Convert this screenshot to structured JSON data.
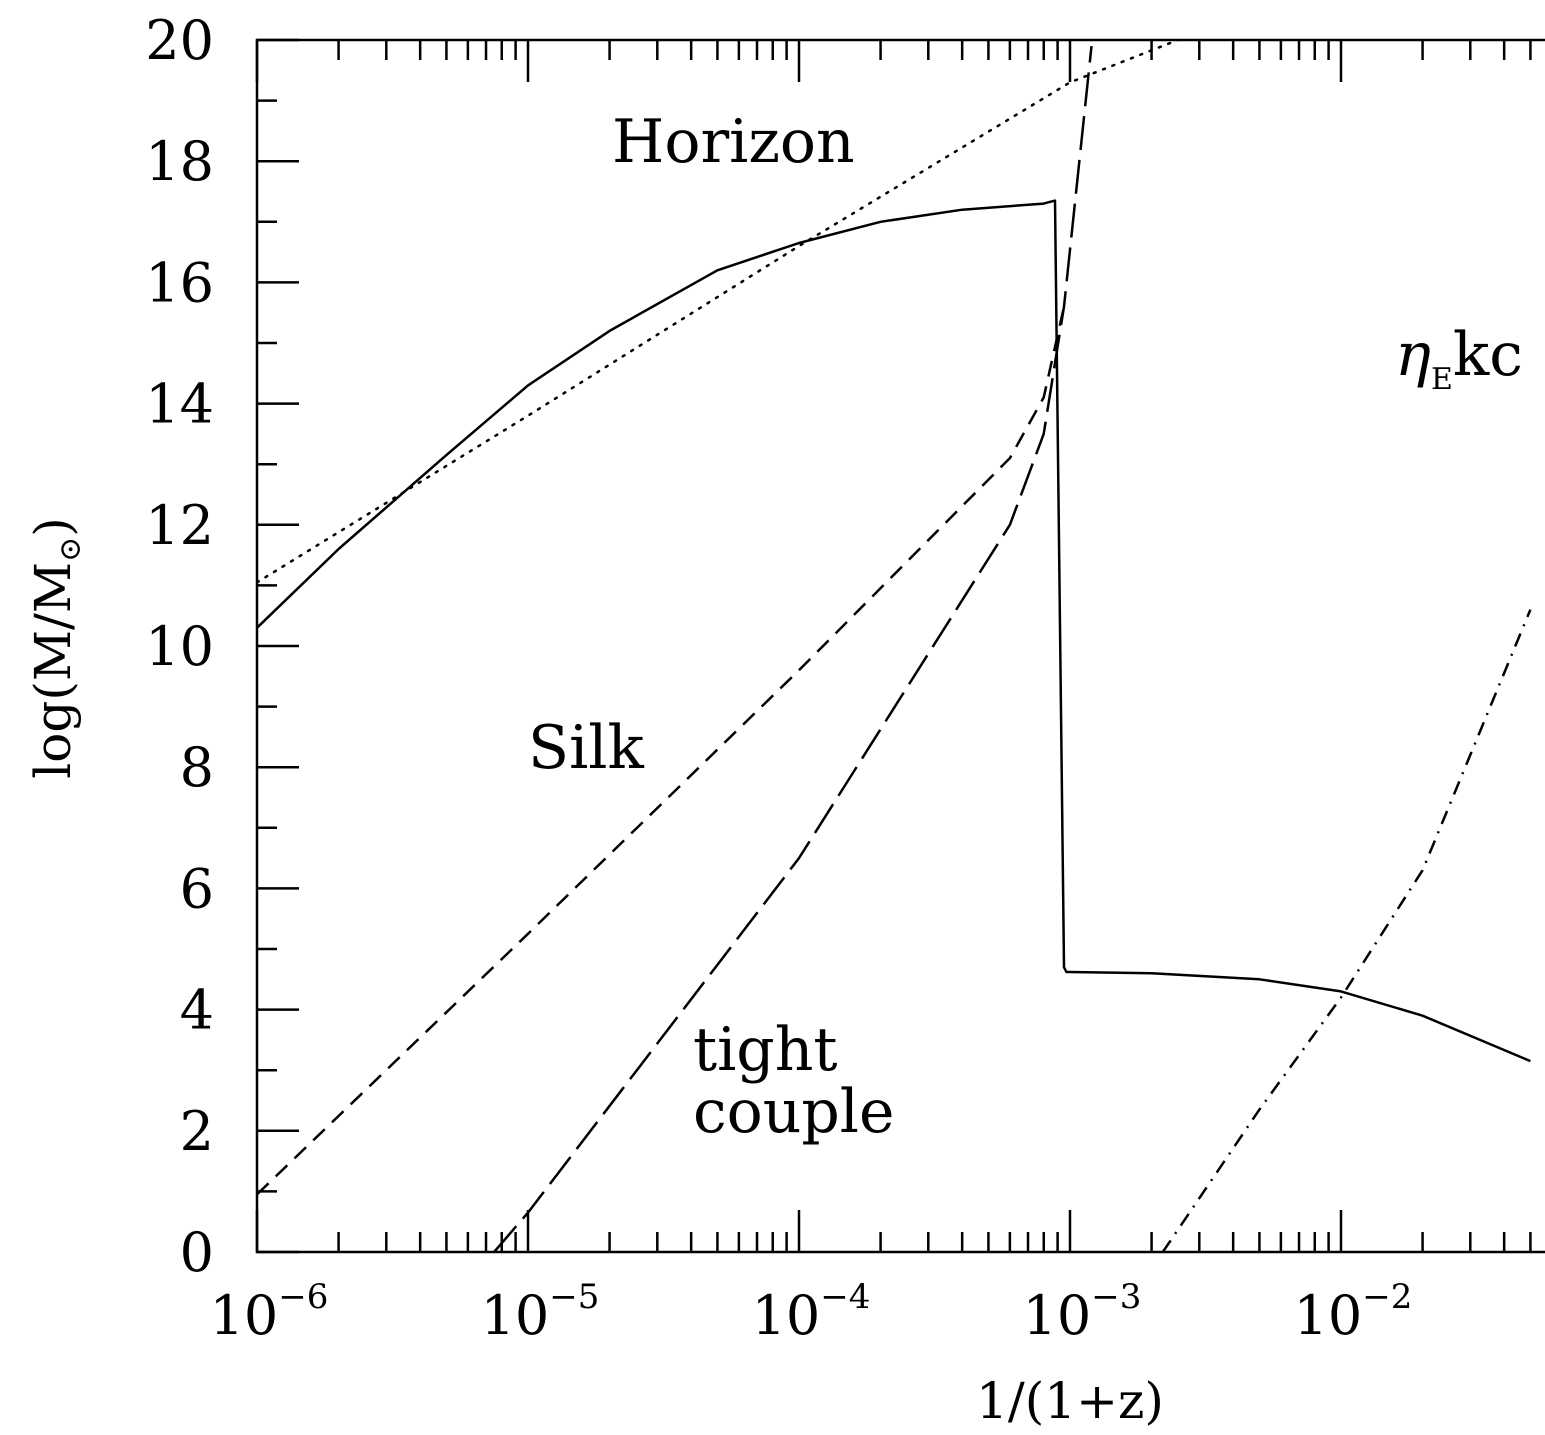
{
  "chart_data": {
    "type": "line",
    "title": "",
    "xlabel": "1/(1+z)",
    "ylabel": "log(M/M",
    "ylabel_subscript": "⊙",
    "ylabel_close": ")",
    "x_scale": "log",
    "xlim": [
      1e-06,
      0.06
    ],
    "ylim": [
      0,
      20
    ],
    "grid": false,
    "x_ticks": [
      {
        "value": 1e-06,
        "base": "10",
        "exp": "−6"
      },
      {
        "value": 1e-05,
        "base": "10",
        "exp": "−5"
      },
      {
        "value": 0.0001,
        "base": "10",
        "exp": "−4"
      },
      {
        "value": 0.001,
        "base": "10",
        "exp": "−3"
      },
      {
        "value": 0.01,
        "base": "10",
        "exp": "−2"
      }
    ],
    "y_ticks": [
      "0",
      "2",
      "4",
      "6",
      "8",
      "10",
      "12",
      "14",
      "16",
      "18",
      "20"
    ],
    "series": [
      {
        "style": "solid",
        "x": [
          1e-06,
          2e-06,
          5e-06,
          1e-05,
          2e-05,
          5e-05,
          0.0001,
          0.0002,
          0.0004,
          0.0008,
          0.00088,
          0.00095,
          0.00097,
          0.001,
          0.002,
          0.005,
          0.01,
          0.02,
          0.05
        ],
        "y": [
          10.3,
          11.6,
          13.15,
          14.3,
          15.2,
          16.2,
          16.65,
          17.0,
          17.2,
          17.3,
          17.35,
          4.7,
          4.62,
          4.62,
          4.6,
          4.5,
          4.3,
          3.9,
          3.15
        ]
      },
      {
        "style": "dotted",
        "label": "Horizon",
        "x": [
          1e-06,
          1e-05,
          0.0001,
          0.001,
          0.0025
        ],
        "y": [
          11.05,
          13.8,
          16.6,
          19.3,
          20.0
        ]
      },
      {
        "style": "dashed",
        "label": "Silk",
        "x": [
          1e-06,
          1e-05,
          0.0001,
          0.0006,
          0.0008,
          0.00095
        ],
        "y": [
          0.95,
          5.25,
          9.6,
          13.1,
          14.1,
          15.6
        ]
      },
      {
        "style": "long-dashed",
        "label": "tight couple",
        "x": [
          7.5e-06,
          1e-05,
          0.0001,
          0.0006,
          0.0008,
          0.00095,
          0.0012
        ],
        "y": [
          0.0,
          0.65,
          6.5,
          12.0,
          13.5,
          15.6,
          19.9
        ]
      },
      {
        "style": "dash-dot",
        "label": "η_E k c",
        "x": [
          0.0022,
          0.005,
          0.01,
          0.02,
          0.05
        ],
        "y": [
          0.0,
          2.35,
          4.2,
          6.3,
          10.6
        ]
      }
    ],
    "annotations": [
      {
        "text": "Horizon"
      },
      {
        "text": "Silk"
      },
      {
        "text": "tight"
      },
      {
        "text": "couple"
      },
      {
        "text_main": "η",
        "text_sub": "E",
        "text_rest": "kc"
      }
    ]
  }
}
